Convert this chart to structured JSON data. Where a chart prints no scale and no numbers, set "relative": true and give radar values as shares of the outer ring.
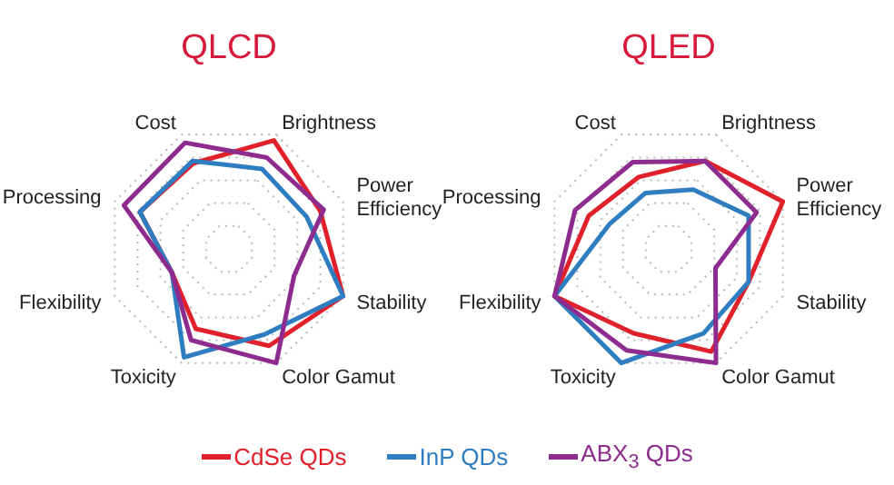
{
  "chart_data": [
    {
      "type": "radar",
      "title": "QLCD",
      "relative": true,
      "grid": true,
      "legend": "bottom",
      "categories": [
        "Brightness",
        "Power Efficiency",
        "Stability",
        "Color Gamut",
        "Toxicity",
        "Flexibility",
        "Processing",
        "Cost"
      ],
      "series": [
        {
          "name": "CdSe QDs",
          "color": "#e0212b",
          "values": [
            0.95,
            0.8,
            1.0,
            0.85,
            0.7,
            0.5,
            0.78,
            0.75
          ]
        },
        {
          "name": "InP QDs",
          "color": "#2e7dc0",
          "values": [
            0.7,
            0.68,
            1.0,
            0.75,
            0.95,
            0.5,
            0.78,
            0.77
          ]
        },
        {
          "name": "ABX$_{3}$ QDs",
          "color": "#8e2b8f",
          "values": [
            0.8,
            0.83,
            0.57,
            1.0,
            0.8,
            0.5,
            0.92,
            0.93
          ]
        }
      ]
    },
    {
      "type": "radar",
      "title": "QLED",
      "relative": true,
      "grid": true,
      "legend": "bottom",
      "categories": [
        "Brightness",
        "Power Efficiency",
        "Stability",
        "Color Gamut",
        "Toxicity",
        "Flexibility",
        "Processing",
        "Cost"
      ],
      "series": [
        {
          "name": "CdSe QDs",
          "color": "#e0212b",
          "values": [
            0.77,
            1.0,
            0.7,
            0.9,
            0.74,
            1.0,
            0.7,
            0.63
          ]
        },
        {
          "name": "InP QDs",
          "color": "#2e7dc0",
          "values": [
            0.52,
            0.7,
            0.7,
            0.74,
            1.0,
            1.0,
            0.52,
            0.49
          ]
        },
        {
          "name": "ABX$_{3}$ QDs",
          "color": "#8e2b8f",
          "values": [
            0.77,
            0.77,
            0.41,
            1.0,
            0.89,
            1.0,
            0.82,
            0.76
          ]
        }
      ]
    }
  ]
}
